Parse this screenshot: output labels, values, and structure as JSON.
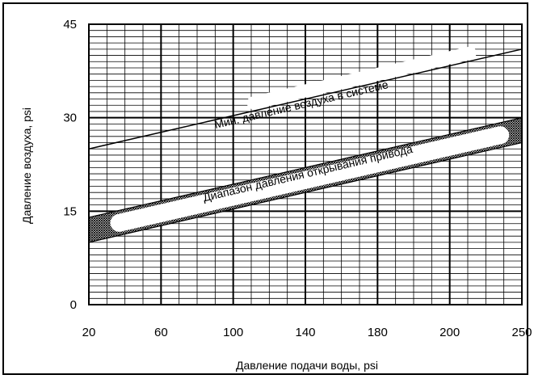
{
  "chart_data": {
    "type": "line",
    "xlabel": "Давление подачи воды, psi",
    "ylabel": "Давление воздуха, psi",
    "x_ticks": [
      "20",
      "60",
      "100",
      "140",
      "180",
      "200",
      "250"
    ],
    "y_ticks": [
      "0",
      "15",
      "30",
      "45"
    ],
    "ylim": [
      0,
      45
    ],
    "grid": true,
    "series": [
      {
        "name": "Мин. давление воздуха в системе",
        "kind": "line",
        "x": [
          20,
          250
        ],
        "y": [
          25,
          41
        ]
      },
      {
        "name": "Диапазон давления открывания привода",
        "kind": "band",
        "x": [
          20,
          250
        ],
        "y_low": [
          10,
          26
        ],
        "y_high": [
          14,
          30
        ]
      }
    ],
    "colors": {
      "line": "#000000",
      "grid": "#000000",
      "band_fill": "#ffffff",
      "hatch": "#000000"
    }
  }
}
